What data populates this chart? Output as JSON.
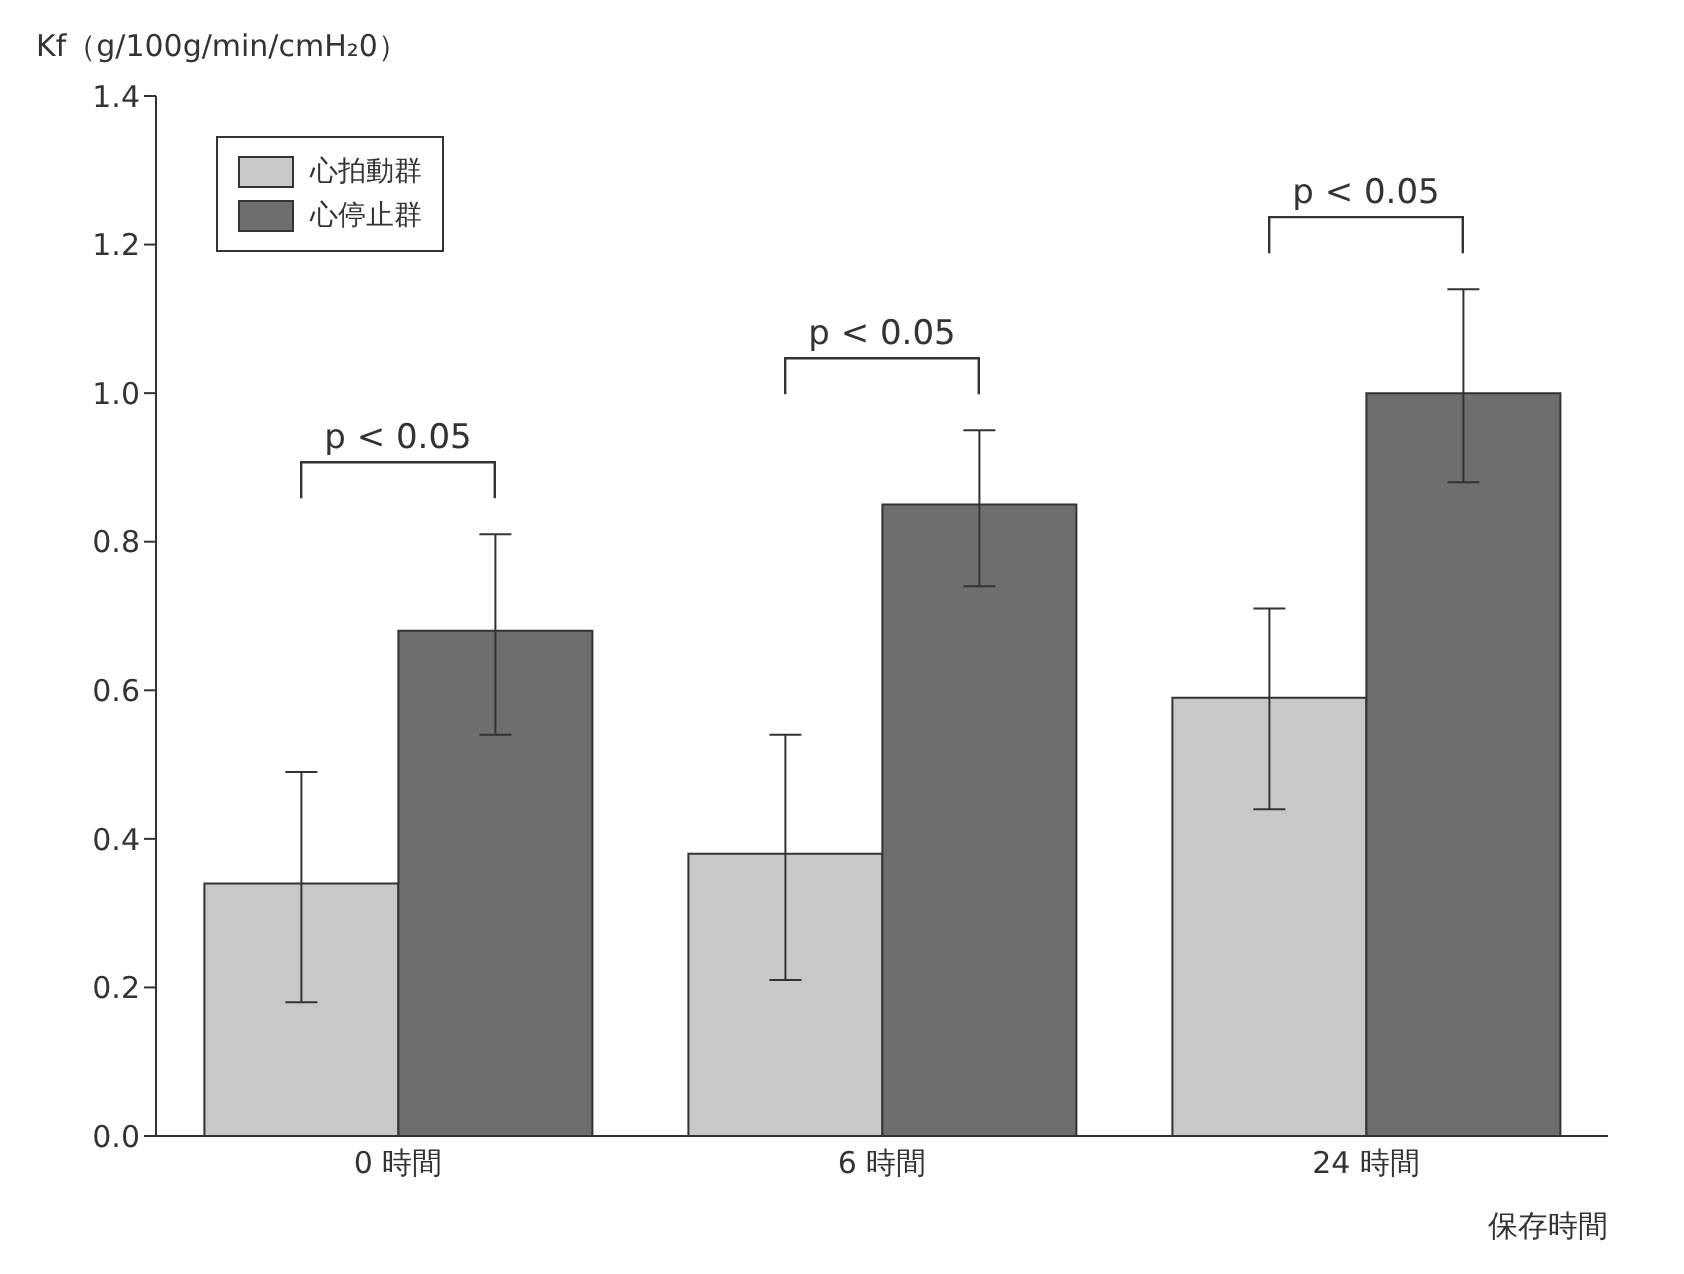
{
  "chart_data": {
    "type": "bar",
    "ylabel": "Kf（g/100g/min/cmH₂0）",
    "xlabel": "保存時間",
    "categories": [
      "0 時間",
      "6 時間",
      "24 時間"
    ],
    "series": [
      {
        "name": "心拍動群",
        "color": "#c8c8c8",
        "values": [
          0.34,
          0.38,
          0.59
        ],
        "errors": [
          [
            0.18,
            0.49
          ],
          [
            0.21,
            0.54
          ],
          [
            0.44,
            0.71
          ]
        ]
      },
      {
        "name": "心停止群",
        "color": "#6e6e6e",
        "values": [
          0.68,
          0.85,
          1.0
        ],
        "errors": [
          [
            0.54,
            0.81
          ],
          [
            0.74,
            0.95
          ],
          [
            0.88,
            1.14
          ]
        ]
      }
    ],
    "ylim": [
      0,
      1.4
    ],
    "yticks": [
      {
        "value": 0,
        "label": "0.0"
      },
      {
        "value": 0.2,
        "label": "0.2"
      },
      {
        "value": 0.4,
        "label": "0.4"
      },
      {
        "value": 0.6,
        "label": "0.6"
      },
      {
        "value": 0.8,
        "label": "0.8"
      },
      {
        "value": 1.0,
        "label": "1.0"
      },
      {
        "value": 1.2,
        "label": "1.2"
      },
      {
        "value": 1.4,
        "label": "1.4"
      }
    ],
    "grid": false,
    "legend": "top left",
    "annotations": [
      "p < 0.05",
      "p < 0.05",
      "p < 0.05"
    ]
  }
}
